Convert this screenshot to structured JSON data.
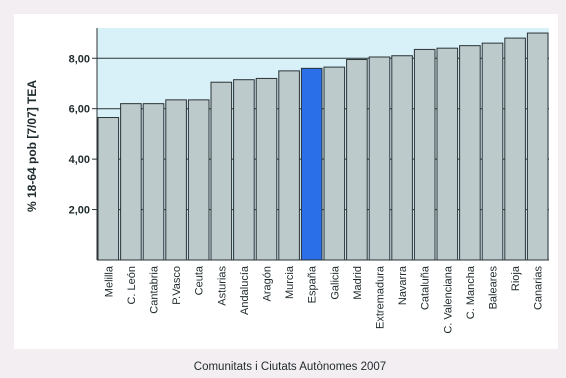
{
  "chart_data": {
    "type": "bar",
    "title": "",
    "xlabel": "Comunitats i Ciutats Autònomes 2007",
    "ylabel": "% 18-64 pob [7/07] TEA",
    "ylim": [
      0,
      9.2
    ],
    "yticks": [
      2,
      4,
      6,
      8
    ],
    "ytick_labels": [
      "2,00",
      "4,00",
      "6,00",
      "8,00"
    ],
    "grid": "horizontal",
    "categories": [
      "Melilla",
      "C. León",
      "Cantabria",
      "P.Vasco",
      "Ceuta",
      "Asturias",
      "Andalucía",
      "Aragón",
      "Murcia",
      "España",
      "Galicia",
      "Madrid",
      "Extremadura",
      "Navarra",
      "Cataluña",
      "C. Valenciana",
      "C. Mancha",
      "Baleares",
      "Rioja",
      "Canarias"
    ],
    "values": [
      5.65,
      6.2,
      6.2,
      6.35,
      6.35,
      7.05,
      7.15,
      7.2,
      7.5,
      7.6,
      7.65,
      7.95,
      8.05,
      8.1,
      8.35,
      8.4,
      8.5,
      8.6,
      8.8,
      9.0
    ],
    "highlight_index": 9,
    "colors": {
      "bar": "#bccacc",
      "bar_highlight": "#2a6fe8",
      "bar_stroke": "#2b3336",
      "plot_bg": "#d8f0f8",
      "page_bg": "#f3eef2",
      "grid": "#2b3336"
    }
  }
}
